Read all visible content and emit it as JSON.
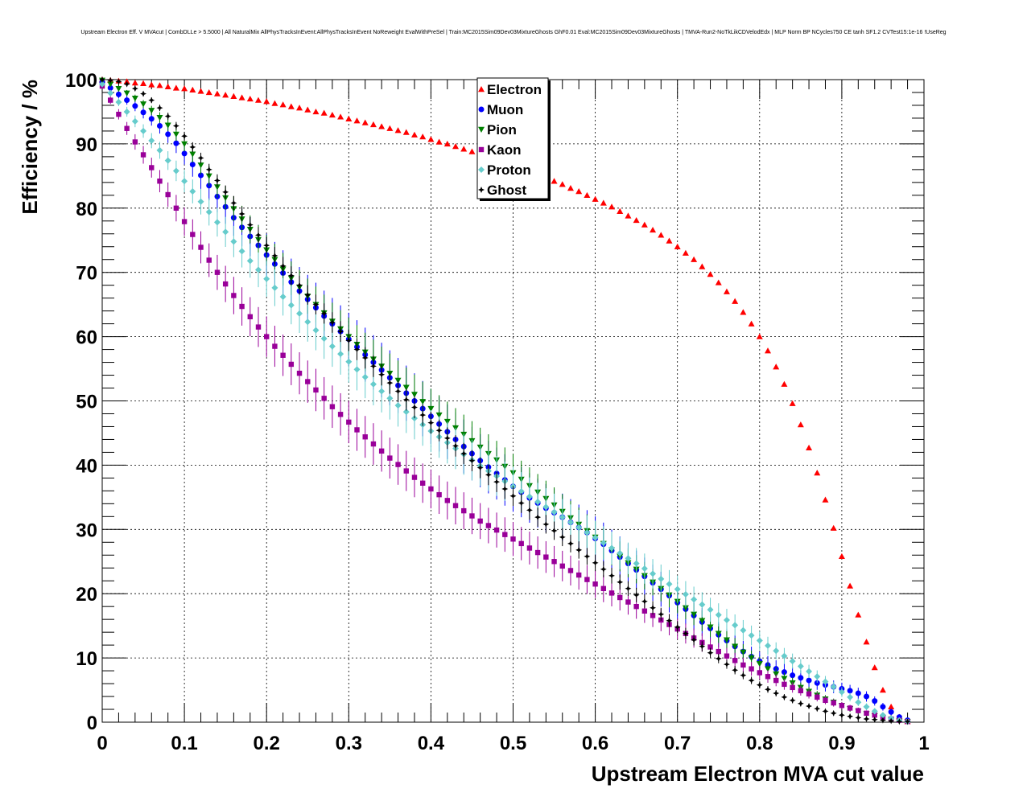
{
  "chart_data": {
    "type": "scatter",
    "title": "Upstream Electron Eff. V MVAcut | CombDLLe > 5.5000 | All NaturalMix AllPhysTracksInEvent:AllPhysTracksInEvent NoReweight EvalWithPreSel | Train:MC2015Sim09Dev03MixtureGhosts GhF0.01 Eval:MC2015Sim09Dev03MixtureGhosts | TMVA-Run2-NoTkLikCDVelodEdx | MLP Norm BP NCycles750 CE tanh SF1.2 CVTest15:1e-16 !UseReg",
    "xlabel": "Upstream Electron MVA cut value",
    "ylabel": "Efficiency / %",
    "xlim": [
      0,
      1
    ],
    "ylim": [
      0,
      100
    ],
    "grid": true,
    "legend_position": "top-center",
    "x_ticks": [
      "0",
      "0.1",
      "0.2",
      "0.3",
      "0.4",
      "0.5",
      "0.6",
      "0.7",
      "0.8",
      "0.9",
      "1"
    ],
    "y_ticks": [
      "0",
      "10",
      "20",
      "30",
      "40",
      "50",
      "60",
      "70",
      "80",
      "90",
      "100"
    ],
    "x": [
      0.0,
      0.01,
      0.02,
      0.03,
      0.04,
      0.05,
      0.06,
      0.07,
      0.08,
      0.09,
      0.1,
      0.11,
      0.12,
      0.13,
      0.14,
      0.15,
      0.16,
      0.17,
      0.18,
      0.19,
      0.2,
      0.21,
      0.22,
      0.23,
      0.24,
      0.25,
      0.26,
      0.27,
      0.28,
      0.29,
      0.3,
      0.31,
      0.32,
      0.33,
      0.34,
      0.35,
      0.36,
      0.37,
      0.38,
      0.39,
      0.4,
      0.41,
      0.42,
      0.43,
      0.44,
      0.45,
      0.46,
      0.47,
      0.48,
      0.49,
      0.5,
      0.51,
      0.52,
      0.53,
      0.54,
      0.55,
      0.56,
      0.57,
      0.58,
      0.59,
      0.6,
      0.61,
      0.62,
      0.63,
      0.64,
      0.65,
      0.66,
      0.67,
      0.68,
      0.69,
      0.7,
      0.71,
      0.72,
      0.73,
      0.74,
      0.75,
      0.76,
      0.77,
      0.78,
      0.79,
      0.8,
      0.81,
      0.82,
      0.83,
      0.84,
      0.85,
      0.86,
      0.87,
      0.88,
      0.89,
      0.9,
      0.91,
      0.92,
      0.93,
      0.94,
      0.95,
      0.96,
      0.97,
      0.98
    ],
    "series": [
      {
        "name": "Electron",
        "color": "#ff0000",
        "marker": "triangle-up",
        "values": [
          100.0,
          99.9,
          99.8,
          99.7,
          99.5,
          99.4,
          99.2,
          99.1,
          98.9,
          98.7,
          98.6,
          98.4,
          98.2,
          98.0,
          97.8,
          97.6,
          97.4,
          97.2,
          97.0,
          96.8,
          96.6,
          96.3,
          96.1,
          95.8,
          95.6,
          95.3,
          95.0,
          94.8,
          94.5,
          94.2,
          93.9,
          93.6,
          93.3,
          93.0,
          92.7,
          92.4,
          92.1,
          91.8,
          91.4,
          91.1,
          90.7,
          90.3,
          90.0,
          89.6,
          89.2,
          88.8,
          88.4,
          88.0,
          87.6,
          87.1,
          86.7,
          86.2,
          85.7,
          85.2,
          84.7,
          84.2,
          83.7,
          83.1,
          82.6,
          82.0,
          81.4,
          80.8,
          80.2,
          79.5,
          78.8,
          78.1,
          77.4,
          76.6,
          75.8,
          74.9,
          74.0,
          73.0,
          72.0,
          70.9,
          69.7,
          68.4,
          67.0,
          65.5,
          63.8,
          62.0,
          60.0,
          57.8,
          55.3,
          52.6,
          49.6,
          46.3,
          42.7,
          38.8,
          34.6,
          30.2,
          25.8,
          21.2,
          16.7,
          12.5,
          8.5,
          5.0,
          2.4,
          0.8,
          0.1
        ]
      },
      {
        "name": "Muon",
        "color": "#0000ff",
        "marker": "circle",
        "values": [
          99.6,
          98.7,
          97.7,
          96.8,
          95.9,
          94.9,
          93.9,
          92.8,
          91.5,
          90.1,
          88.5,
          86.8,
          85.1,
          83.5,
          81.8,
          80.2,
          78.5,
          77.0,
          75.6,
          74.2,
          72.7,
          71.3,
          69.9,
          68.5,
          67.1,
          65.8,
          64.5,
          63.2,
          62.0,
          60.8,
          59.6,
          58.4,
          57.2,
          56.0,
          54.8,
          53.6,
          52.4,
          51.2,
          50.0,
          48.8,
          47.6,
          46.4,
          45.2,
          44.0,
          42.9,
          41.8,
          40.7,
          39.7,
          38.7,
          37.7,
          36.7,
          35.8,
          34.9,
          34.1,
          33.3,
          32.6,
          31.9,
          31.1,
          30.3,
          29.5,
          28.6,
          27.7,
          26.7,
          25.7,
          24.7,
          23.7,
          22.7,
          21.7,
          20.7,
          19.7,
          18.6,
          17.6,
          16.6,
          15.6,
          14.6,
          13.6,
          12.7,
          11.8,
          11.0,
          10.2,
          9.5,
          8.9,
          8.3,
          7.8,
          7.3,
          6.9,
          6.5,
          6.1,
          5.8,
          5.5,
          5.2,
          4.9,
          4.5,
          4.0,
          3.3,
          2.4,
          1.6,
          0.8,
          0.3
        ]
      },
      {
        "name": "Pion",
        "color": "#008000",
        "marker": "triangle-down",
        "values": [
          99.9,
          99.3,
          98.6,
          97.9,
          97.1,
          96.2,
          95.2,
          94.1,
          92.9,
          91.5,
          90.0,
          88.4,
          86.7,
          85.0,
          83.3,
          81.6,
          79.9,
          78.3,
          76.7,
          75.1,
          73.5,
          72.0,
          70.5,
          69.1,
          67.7,
          66.3,
          65.0,
          63.7,
          62.4,
          61.2,
          60.0,
          58.8,
          57.6,
          56.5,
          55.4,
          54.3,
          53.2,
          52.1,
          51.0,
          49.9,
          48.8,
          47.8,
          46.8,
          45.8,
          44.8,
          43.8,
          42.8,
          41.8,
          40.8,
          39.8,
          38.8,
          37.8,
          36.8,
          35.8,
          34.8,
          33.8,
          32.8,
          31.8,
          30.8,
          29.8,
          28.8,
          27.8,
          26.8,
          25.8,
          24.8,
          23.8,
          22.8,
          21.8,
          20.8,
          19.8,
          18.8,
          17.8,
          16.8,
          15.8,
          14.8,
          13.8,
          12.8,
          11.8,
          10.9,
          10.0,
          9.1,
          8.3,
          7.5,
          6.8,
          6.1,
          5.4,
          4.8,
          4.2,
          3.6,
          3.1,
          2.6,
          2.1,
          1.7,
          1.3,
          1.0,
          0.7,
          0.4,
          0.2,
          0.1
        ]
      },
      {
        "name": "Kaon",
        "color": "#990099",
        "marker": "square",
        "values": [
          99.0,
          96.8,
          94.6,
          92.4,
          90.3,
          88.3,
          86.3,
          84.2,
          82.1,
          80.0,
          77.9,
          75.9,
          73.9,
          71.9,
          70.0,
          68.2,
          66.4,
          64.7,
          63.1,
          61.5,
          60.0,
          58.5,
          57.1,
          55.7,
          54.3,
          53.0,
          51.7,
          50.4,
          49.1,
          47.9,
          46.7,
          45.5,
          44.4,
          43.3,
          42.2,
          41.1,
          40.1,
          39.1,
          38.1,
          37.2,
          36.3,
          35.4,
          34.5,
          33.7,
          32.9,
          32.1,
          31.3,
          30.6,
          29.9,
          29.2,
          28.5,
          27.8,
          27.1,
          26.4,
          25.7,
          25.0,
          24.3,
          23.6,
          22.9,
          22.2,
          21.5,
          20.8,
          20.1,
          19.4,
          18.7,
          18.0,
          17.3,
          16.6,
          15.9,
          15.2,
          14.5,
          13.8,
          13.1,
          12.4,
          11.7,
          11.0,
          10.3,
          9.6,
          8.9,
          8.3,
          7.7,
          7.1,
          6.5,
          5.9,
          5.4,
          4.9,
          4.4,
          3.9,
          3.4,
          3.0,
          2.6,
          2.2,
          1.8,
          1.4,
          1.1,
          0.8,
          0.5,
          0.3,
          0.1
        ]
      },
      {
        "name": "Proton",
        "color": "#66cccc",
        "marker": "diamond",
        "values": [
          99.3,
          97.9,
          96.5,
          95.0,
          93.5,
          92.0,
          90.5,
          89.0,
          87.4,
          85.8,
          84.2,
          82.6,
          81.0,
          79.4,
          77.8,
          76.3,
          74.8,
          73.3,
          71.8,
          70.4,
          69.0,
          67.6,
          66.2,
          64.9,
          63.6,
          62.3,
          61.0,
          59.7,
          58.5,
          57.3,
          56.1,
          54.9,
          53.7,
          52.6,
          51.5,
          50.4,
          49.3,
          48.3,
          47.3,
          46.3,
          45.3,
          44.4,
          43.5,
          42.6,
          41.7,
          40.8,
          39.9,
          39.1,
          38.3,
          37.5,
          36.7,
          35.9,
          35.1,
          34.3,
          33.5,
          32.7,
          31.9,
          31.1,
          30.3,
          29.5,
          28.7,
          27.9,
          27.1,
          26.3,
          25.5,
          24.7,
          23.9,
          23.1,
          22.3,
          21.5,
          20.7,
          19.9,
          19.1,
          18.3,
          17.5,
          16.7,
          15.9,
          15.1,
          14.3,
          13.5,
          12.7,
          11.9,
          11.1,
          10.3,
          9.5,
          8.7,
          7.9,
          7.1,
          6.3,
          5.5,
          4.7,
          3.9,
          3.1,
          2.4,
          1.7,
          1.1,
          0.6,
          0.3,
          0.1
        ]
      },
      {
        "name": "Ghost",
        "color": "#000000",
        "marker": "star",
        "values": [
          100.0,
          99.9,
          99.7,
          99.3,
          98.6,
          97.8,
          96.8,
          95.6,
          94.3,
          92.8,
          91.2,
          89.5,
          87.8,
          86.0,
          84.3,
          82.5,
          80.8,
          79.1,
          77.4,
          75.8,
          74.2,
          72.6,
          71.0,
          69.5,
          68.0,
          66.5,
          65.0,
          63.6,
          62.2,
          60.8,
          59.4,
          58.0,
          56.7,
          55.4,
          54.1,
          52.8,
          51.5,
          50.2,
          49.0,
          47.8,
          46.6,
          45.4,
          44.2,
          43.0,
          41.8,
          40.7,
          39.6,
          38.5,
          37.4,
          36.3,
          35.2,
          34.1,
          33.0,
          31.9,
          30.8,
          29.8,
          28.8,
          27.8,
          26.8,
          25.8,
          24.8,
          23.8,
          22.8,
          21.8,
          20.8,
          19.8,
          18.8,
          17.8,
          16.8,
          15.8,
          14.8,
          13.8,
          12.8,
          11.8,
          10.8,
          9.9,
          9.0,
          8.1,
          7.3,
          6.5,
          5.8,
          5.1,
          4.5,
          3.9,
          3.4,
          2.9,
          2.5,
          2.1,
          1.7,
          1.4,
          1.1,
          0.9,
          0.7,
          0.5,
          0.4,
          0.3,
          0.2,
          0.1,
          0.1
        ]
      }
    ]
  }
}
